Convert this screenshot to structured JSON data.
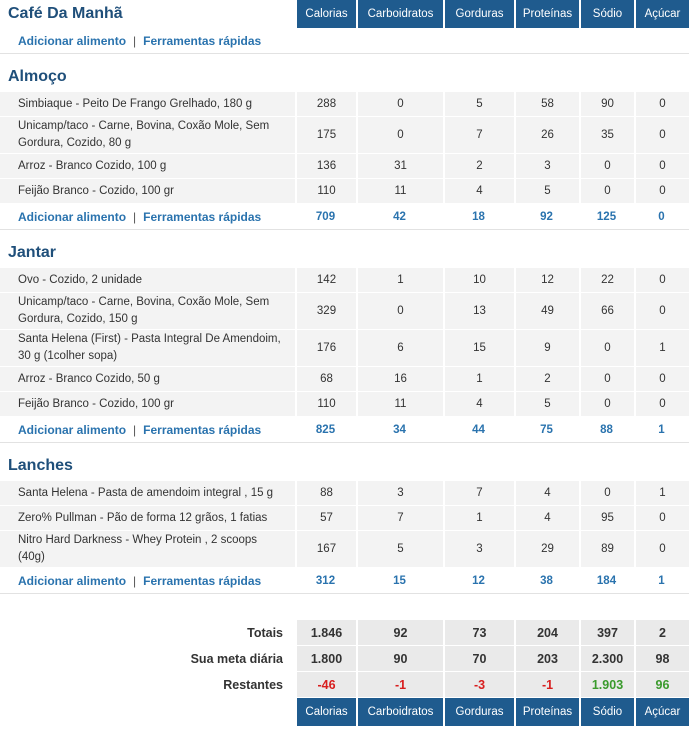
{
  "columns": [
    "Calorias",
    "Carboidratos",
    "Gorduras",
    "Proteínas",
    "Sódio",
    "Açúcar"
  ],
  "add_food_label": "Adicionar alimento",
  "separator": "|",
  "quick_tools_label": "Ferramentas rápidas",
  "breakfast": {
    "title": "Café Da Manhã"
  },
  "lunch": {
    "title": "Almoço",
    "items": [
      {
        "name": "Simbiaque - Peito De Frango Grelhado, 180 g",
        "values": [
          "288",
          "0",
          "5",
          "58",
          "90",
          "0"
        ]
      },
      {
        "name": "Unicamp/taco - Carne, Bovina, Coxão Mole, Sem Gordura, Cozido, 80 g",
        "values": [
          "175",
          "0",
          "7",
          "26",
          "35",
          "0"
        ]
      },
      {
        "name": "Arroz - Branco Cozido, 100 g",
        "values": [
          "136",
          "31",
          "2",
          "3",
          "0",
          "0"
        ]
      },
      {
        "name": "Feijão Branco - Cozido, 100 gr",
        "values": [
          "110",
          "11",
          "4",
          "5",
          "0",
          "0"
        ]
      }
    ],
    "totals": [
      "709",
      "42",
      "18",
      "92",
      "125",
      "0"
    ]
  },
  "dinner": {
    "title": "Jantar",
    "items": [
      {
        "name": "Ovo - Cozido, 2 unidade",
        "values": [
          "142",
          "1",
          "10",
          "12",
          "22",
          "0"
        ]
      },
      {
        "name": "Unicamp/taco - Carne, Bovina, Coxão Mole, Sem Gordura, Cozido, 150 g",
        "values": [
          "329",
          "0",
          "13",
          "49",
          "66",
          "0"
        ]
      },
      {
        "name": "Santa Helena (First) - Pasta Integral De Amendoim, 30 g (1colher sopa)",
        "values": [
          "176",
          "6",
          "15",
          "9",
          "0",
          "1"
        ]
      },
      {
        "name": "Arroz - Branco Cozido, 50 g",
        "values": [
          "68",
          "16",
          "1",
          "2",
          "0",
          "0"
        ]
      },
      {
        "name": "Feijão Branco - Cozido, 100 gr",
        "values": [
          "110",
          "11",
          "4",
          "5",
          "0",
          "0"
        ]
      }
    ],
    "totals": [
      "825",
      "34",
      "44",
      "75",
      "88",
      "1"
    ]
  },
  "snacks": {
    "title": "Lanches",
    "items": [
      {
        "name": "Santa Helena - Pasta de amendoim integral , 15 g",
        "values": [
          "88",
          "3",
          "7",
          "4",
          "0",
          "1"
        ]
      },
      {
        "name": "Zero% Pullman - Pão de forma 12 grãos, 1 fatias",
        "values": [
          "57",
          "7",
          "1",
          "4",
          "95",
          "0"
        ]
      },
      {
        "name": "Nitro Hard Darkness - Whey Protein , 2 scoops (40g)",
        "values": [
          "167",
          "5",
          "3",
          "29",
          "89",
          "0"
        ]
      }
    ],
    "totals": [
      "312",
      "15",
      "12",
      "38",
      "184",
      "1"
    ]
  },
  "summary": {
    "totals_label": "Totais",
    "totals": [
      "1.846",
      "92",
      "73",
      "204",
      "397",
      "2"
    ],
    "goal_label": "Sua meta diária",
    "goal": [
      "1.800",
      "90",
      "70",
      "203",
      "2.300",
      "98"
    ],
    "remaining_label": "Restantes",
    "remaining": [
      "-46",
      "-1",
      "-3",
      "-1",
      "1.903",
      "96"
    ],
    "remaining_status": [
      "over",
      "over",
      "over",
      "over",
      "under",
      "under"
    ]
  },
  "colors": {
    "header_bg": "#1f5b8e",
    "link": "#2a73ae",
    "over": "#d81e1e",
    "under": "#3a9a2c"
  }
}
